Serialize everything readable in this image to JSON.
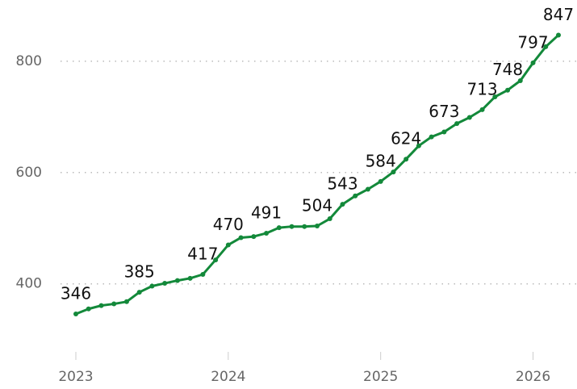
{
  "chart_data": {
    "type": "line",
    "categories": [
      "2023",
      null,
      null,
      null,
      null,
      null,
      null,
      null,
      null,
      null,
      null,
      null,
      "2024",
      null,
      null,
      null,
      null,
      null,
      null,
      null,
      null,
      null,
      null,
      null,
      "2025",
      null,
      null,
      null,
      null,
      null,
      null,
      null,
      null,
      null,
      null,
      null,
      "2026",
      null,
      null
    ],
    "series": [
      {
        "color": "#13893a",
        "values": [
          346,
          355,
          361,
          364,
          368,
          385,
          396,
          401,
          406,
          410,
          417,
          443,
          470,
          483,
          485,
          491,
          501,
          503,
          503,
          504,
          517,
          543,
          558,
          570,
          584,
          601,
          624,
          648,
          664,
          673,
          688,
          699,
          713,
          736,
          748,
          765,
          797,
          826,
          847
        ],
        "value_labels": [
          "346",
          null,
          null,
          null,
          null,
          "385",
          null,
          null,
          null,
          null,
          "417",
          null,
          "470",
          null,
          null,
          "491",
          null,
          null,
          null,
          "504",
          null,
          "543",
          null,
          null,
          "584",
          null,
          "624",
          null,
          null,
          "673",
          null,
          null,
          "713",
          null,
          "748",
          null,
          "797",
          null,
          "847"
        ]
      }
    ],
    "ylim": [
      272,
      910
    ],
    "yticks": [
      400,
      600,
      800
    ],
    "grid": true
  }
}
